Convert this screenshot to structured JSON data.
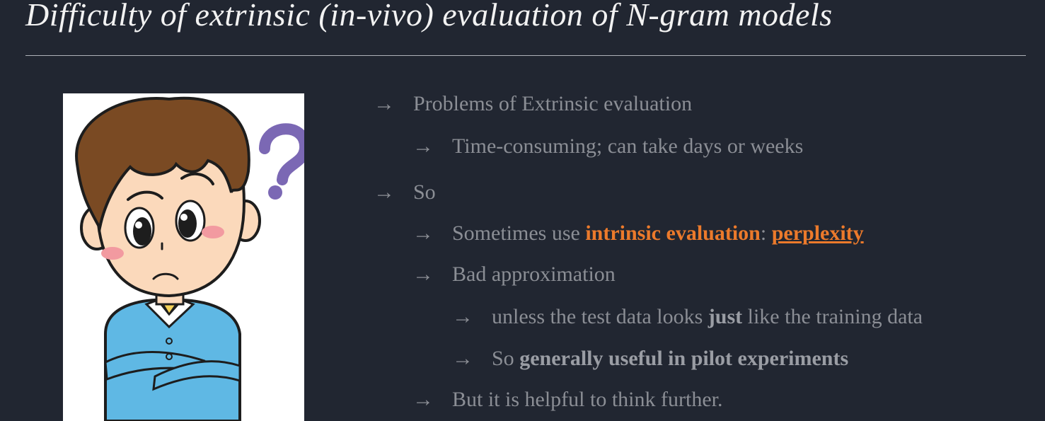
{
  "slide": {
    "title": "Difficulty of extrinsic (in-vivo) evaluation of N-gram models",
    "arrow": "→"
  },
  "image": {
    "description_icon": "confused-boy-illustration"
  },
  "bullets": {
    "b1": "Problems of Extrinsic evaluation",
    "b2": "Time-consuming; can take days or weeks",
    "b3": "So",
    "b4_pre": "Sometimes use ",
    "b4_hl": "intrinsic evaluation",
    "b4_sep": ": ",
    "b4_link": "perplexity",
    "b5": "Bad approximation",
    "b6_pre": "unless the test data looks ",
    "b6_bold": "just",
    "b6_post": " like the training data",
    "b7_pre": "So ",
    "b7_bold": "generally useful in pilot experiments",
    "b8": "But it is helpful to think further."
  },
  "colors": {
    "background": "#212631",
    "title": "#f2f2f2",
    "text": "#8b8e95",
    "accent": "#ec7a2b"
  }
}
